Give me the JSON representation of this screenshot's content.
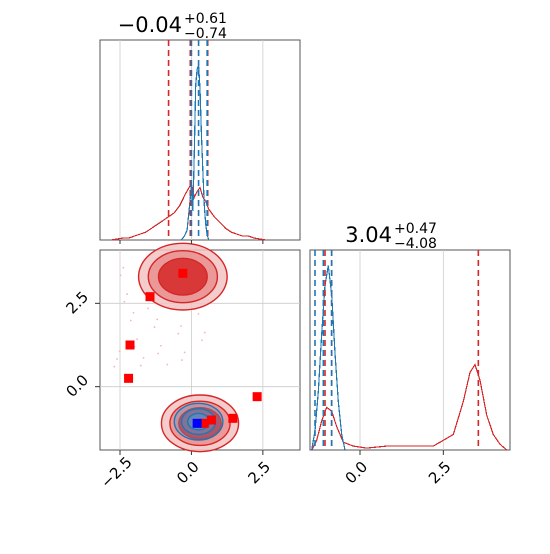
{
  "chart_data": [
    {
      "type": "histogram",
      "panel": "marginal x (top-left)",
      "title_main": "−0.04",
      "title_sup": "+0.61",
      "title_sub": "−0.74",
      "xlim": [
        -3.2,
        3.8
      ],
      "ylim": [
        0,
        1.0
      ],
      "grid": true,
      "series": [
        {
          "name": "",
          "color": "#1f77b4",
          "bins": [
            -0.35,
            1.0
          ],
          "values": [
            [
              -0.35,
              0.0
            ],
            [
              -0.25,
              0.02
            ],
            [
              -0.15,
              0.05
            ],
            [
              -0.05,
              0.2
            ],
            [
              0.0,
              0.29
            ],
            [
              0.05,
              0.15
            ],
            [
              0.1,
              0.45
            ],
            [
              0.15,
              0.8
            ],
            [
              0.2,
              0.88
            ],
            [
              0.25,
              0.9
            ],
            [
              0.3,
              0.78
            ],
            [
              0.35,
              0.55
            ],
            [
              0.4,
              0.35
            ],
            [
              0.45,
              0.18
            ],
            [
              0.5,
              0.08
            ],
            [
              0.55,
              0.03
            ],
            [
              0.6,
              0.0
            ]
          ]
        },
        {
          "name": "",
          "color": "#d62728",
          "values": [
            [
              -2.8,
              0.0
            ],
            [
              -2.6,
              0.005
            ],
            [
              -2.4,
              0.01
            ],
            [
              -2.2,
              0.01
            ],
            [
              -2.0,
              0.02
            ],
            [
              -1.8,
              0.03
            ],
            [
              -1.6,
              0.04
            ],
            [
              -1.4,
              0.06
            ],
            [
              -1.2,
              0.08
            ],
            [
              -1.0,
              0.1
            ],
            [
              -0.8,
              0.12
            ],
            [
              -0.6,
              0.14
            ],
            [
              -0.4,
              0.18
            ],
            [
              -0.2,
              0.24
            ],
            [
              0.0,
              0.29
            ],
            [
              0.1,
              0.22
            ],
            [
              0.2,
              0.25
            ],
            [
              0.3,
              0.27
            ],
            [
              0.4,
              0.22
            ],
            [
              0.5,
              0.2
            ],
            [
              0.6,
              0.16
            ],
            [
              0.8,
              0.12
            ],
            [
              1.0,
              0.09
            ],
            [
              1.2,
              0.06
            ],
            [
              1.4,
              0.04
            ],
            [
              1.6,
              0.03
            ],
            [
              1.8,
              0.02
            ],
            [
              2.0,
              0.02
            ],
            [
              2.2,
              0.01
            ],
            [
              2.4,
              0.005
            ],
            [
              2.6,
              0.0
            ]
          ]
        }
      ],
      "vlines_blue": [
        0.0,
        0.25,
        0.55
      ],
      "vlines_red": [
        -0.8,
        -0.04,
        0.57
      ]
    },
    {
      "type": "histogram",
      "panel": "marginal y (bottom-right)",
      "title_main": "3.04",
      "title_sup": "+0.47",
      "title_sub": "−4.08",
      "xlim": [
        -1.5,
        4.5
      ],
      "xticks": [
        0.0,
        2.5
      ],
      "xtick_labels": [
        "0.0",
        "2.5"
      ],
      "grid": true,
      "series": [
        {
          "name": "",
          "color": "#1f77b4",
          "values": [
            [
              -1.45,
              0.0
            ],
            [
              -1.35,
              0.1
            ],
            [
              -1.25,
              0.3
            ],
            [
              -1.15,
              0.6
            ],
            [
              -1.05,
              0.85
            ],
            [
              -0.95,
              0.95
            ],
            [
              -0.85,
              0.8
            ],
            [
              -0.75,
              0.5
            ],
            [
              -0.65,
              0.25
            ],
            [
              -0.55,
              0.08
            ],
            [
              -0.45,
              0.0
            ]
          ]
        },
        {
          "name": "",
          "color": "#d62728",
          "values": [
            [
              -1.45,
              0.0
            ],
            [
              -1.3,
              0.05
            ],
            [
              -1.15,
              0.15
            ],
            [
              -1.0,
              0.22
            ],
            [
              -0.85,
              0.2
            ],
            [
              -0.7,
              0.12
            ],
            [
              -0.5,
              0.04
            ],
            [
              -0.2,
              0.02
            ],
            [
              0.2,
              0.01
            ],
            [
              0.8,
              0.02
            ],
            [
              1.5,
              0.02
            ],
            [
              2.2,
              0.02
            ],
            [
              2.8,
              0.08
            ],
            [
              3.1,
              0.25
            ],
            [
              3.3,
              0.4
            ],
            [
              3.45,
              0.44
            ],
            [
              3.6,
              0.36
            ],
            [
              3.8,
              0.18
            ],
            [
              4.0,
              0.08
            ],
            [
              4.2,
              0.03
            ],
            [
              4.4,
              0.0
            ]
          ]
        }
      ],
      "vlines_blue": [
        -1.35,
        -1.1,
        -0.85
      ],
      "vlines_red": [
        -1.05,
        -0.85,
        3.55
      ]
    },
    {
      "type": "scatter",
      "panel": "joint (bottom-left)",
      "xlim": [
        -3.2,
        3.8
      ],
      "ylim": [
        -1.9,
        4.1
      ],
      "xticks": [
        -2.5,
        0.0,
        2.5
      ],
      "xtick_labels": [
        "−2.5",
        "0.0",
        "2.5"
      ],
      "yticks": [
        0.0,
        2.5
      ],
      "ytick_labels": [
        "0.0",
        "2.5"
      ],
      "grid": true,
      "red_contours": [
        {
          "cx": -0.3,
          "cy": 3.3,
          "rx": 1.55,
          "ry": 1.0
        },
        {
          "cx": 0.3,
          "cy": -1.1,
          "rx": 1.35,
          "ry": 0.85
        }
      ],
      "blue_contour": {
        "cx": 0.25,
        "cy": -1.05,
        "rx": 0.85,
        "ry": 0.55
      },
      "red_points": [
        [
          -0.3,
          3.4
        ],
        [
          -1.45,
          2.7
        ],
        [
          -2.15,
          1.25
        ],
        [
          -2.2,
          0.25
        ],
        [
          2.3,
          -0.3
        ],
        [
          1.45,
          -0.95
        ],
        [
          0.45,
          -1.1
        ],
        [
          0.7,
          -1.0
        ]
      ],
      "blue_points": [
        [
          0.2,
          -1.1
        ]
      ]
    }
  ]
}
